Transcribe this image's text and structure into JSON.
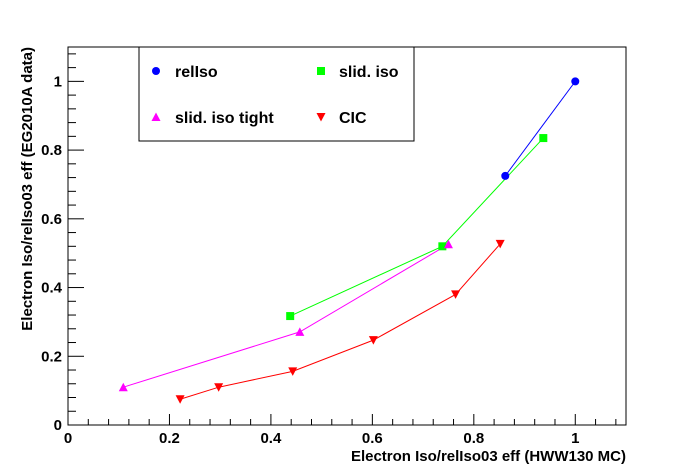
{
  "chart_data": {
    "type": "line",
    "title": "",
    "xlabel": "Electron Iso/relIso03 eff (HWW130 MC)",
    "ylabel": "Electron Iso/relIso03 eff (EG2010A data)",
    "xlim": [
      0,
      1.1
    ],
    "ylim": [
      0,
      1.1
    ],
    "xticks": [
      "0",
      "0.2",
      "0.4",
      "0.6",
      "0.8",
      "1"
    ],
    "yticks": [
      "0",
      "0.2",
      "0.4",
      "0.6",
      "0.8",
      "1"
    ],
    "grid": false,
    "legend_position": "top-left",
    "series": [
      {
        "name": "relIso",
        "color": "#0000ff",
        "marker": "circle",
        "x": [
          0.862,
          1.0
        ],
        "y": [
          0.725,
          1.0
        ]
      },
      {
        "name": "slid. iso",
        "color": "#00ff00",
        "marker": "square",
        "x": [
          0.438,
          0.738,
          0.937
        ],
        "y": [
          0.317,
          0.52,
          0.835
        ]
      },
      {
        "name": "slid. iso tight",
        "color": "#ff00ff",
        "marker": "triangle-up",
        "x": [
          0.109,
          0.457,
          0.75
        ],
        "y": [
          0.11,
          0.271,
          0.526
        ]
      },
      {
        "name": "CIC",
        "color": "#ff0000",
        "marker": "triangle-down",
        "x": [
          0.221,
          0.297,
          0.443,
          0.602,
          0.764,
          0.852
        ],
        "y": [
          0.075,
          0.11,
          0.156,
          0.247,
          0.38,
          0.527
        ]
      }
    ]
  }
}
